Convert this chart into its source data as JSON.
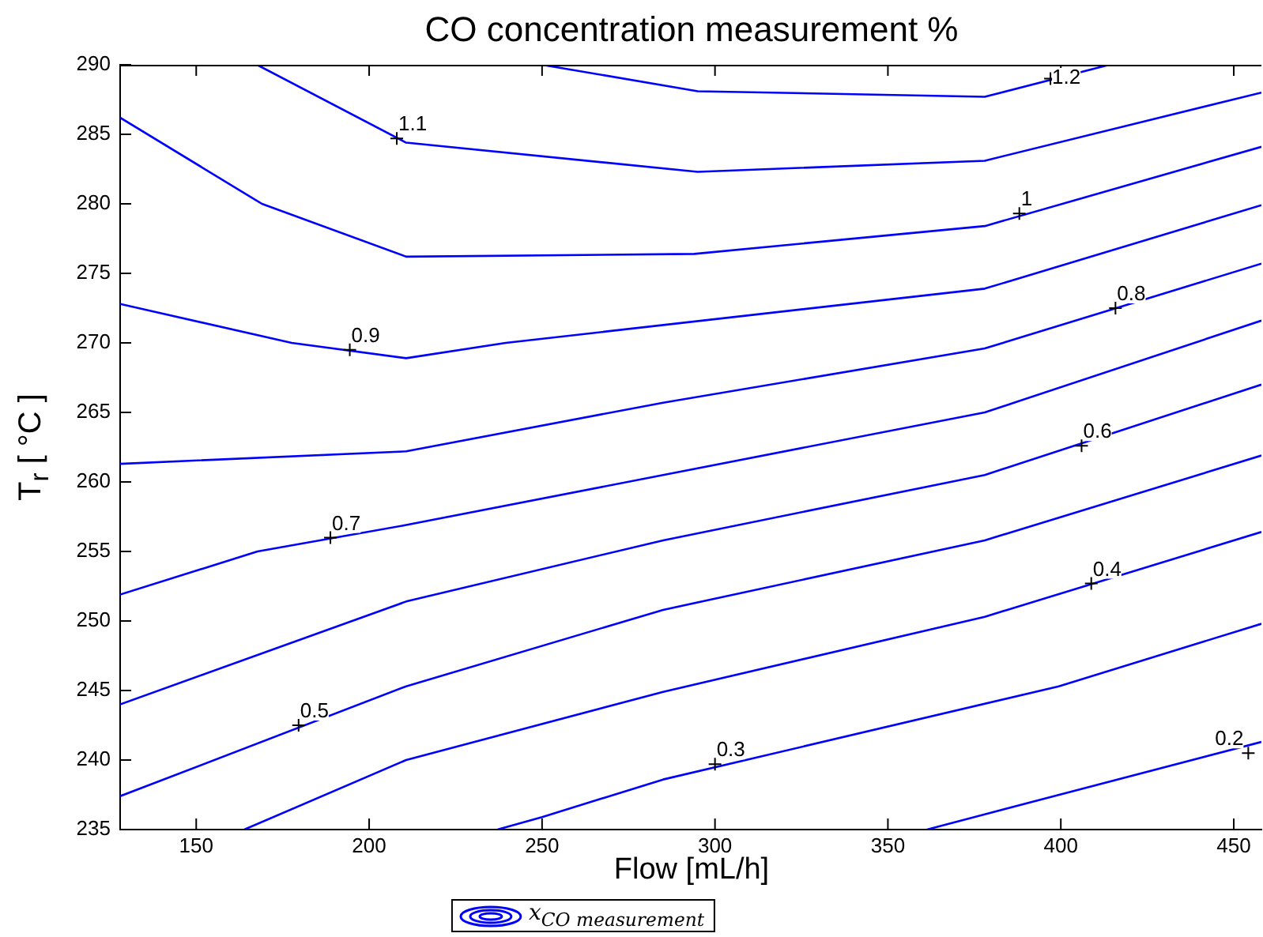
{
  "chart_data": {
    "type": "line",
    "title": "CO concentration measurement %",
    "xlabel": "Flow [mL/h]",
    "ylabel": "T$_{r}$ [ °C ]",
    "xlim": [
      128,
      458
    ],
    "xticks": [
      150,
      200,
      250,
      300,
      350,
      400,
      450
    ],
    "ylim": [
      235,
      290
    ],
    "yticks": [
      235,
      240,
      245,
      250,
      255,
      260,
      265,
      270,
      275,
      280,
      285,
      290
    ],
    "legend": "bottom",
    "series": [
      {
        "name": "x$_{CO measurement}$",
        "color": "#0000ff",
        "x": [
          250,
          295,
          378,
          414
        ],
        "values": [
          290,
          288.1,
          287.7,
          290
        ]
      },
      {
        "color": "#0000ff",
        "x": [
          167.6,
          210.7,
          295,
          378,
          458
        ],
        "values": [
          290,
          284.4,
          282.3,
          283.1,
          288
        ]
      },
      {
        "color": "#0000ff",
        "x": [
          128,
          169,
          210.7,
          294,
          378,
          458
        ],
        "values": [
          286.2,
          280,
          276.2,
          276.4,
          278.4,
          284.1
        ]
      },
      {
        "color": "#0000ff",
        "x": [
          128,
          177.6,
          210.7,
          239.5,
          378,
          458
        ],
        "values": [
          272.8,
          270,
          268.9,
          270,
          273.9,
          279.9
        ]
      },
      {
        "color": "#0000ff",
        "x": [
          128,
          210.7,
          285,
          378,
          458
        ],
        "values": [
          261.3,
          262.2,
          265.7,
          269.6,
          275.7
        ]
      },
      {
        "color": "#0000ff",
        "x": [
          128,
          167.7,
          210.7,
          285,
          378,
          458
        ],
        "values": [
          251.9,
          255,
          256.9,
          260.5,
          265,
          271.6
        ]
      },
      {
        "color": "#0000ff",
        "x": [
          128,
          210.7,
          285,
          378,
          458
        ],
        "values": [
          244,
          251.4,
          255.8,
          260.5,
          267
        ]
      },
      {
        "color": "#0000ff",
        "x": [
          128,
          210.7,
          285,
          378,
          458
        ],
        "values": [
          237.4,
          245.3,
          250.8,
          255.8,
          261.9
        ]
      },
      {
        "color": "#0000ff",
        "x": [
          163.9,
          210.7,
          285,
          378,
          458
        ],
        "values": [
          235,
          240,
          244.9,
          250.3,
          256.4
        ]
      },
      {
        "color": "#0000ff",
        "x": [
          237.1,
          250,
          285,
          399.4,
          458
        ],
        "values": [
          235,
          235.9,
          238.6,
          245.3,
          249.8
        ]
      },
      {
        "color": "#0000ff",
        "x": [
          361.3,
          378,
          458
        ],
        "values": [
          235,
          236.1,
          241.3
        ]
      }
    ],
    "annotations": [
      {
        "text": "1.2",
        "x": 397,
        "y": 289
      },
      {
        "text": "1.1",
        "x": 208,
        "y": 284.7
      },
      {
        "text": "1",
        "x": 388,
        "y": 279.3
      },
      {
        "text": "0.9",
        "x": 194.4,
        "y": 269.5
      },
      {
        "text": "0.8",
        "x": 415.8,
        "y": 272.5
      },
      {
        "text": "0.7",
        "x": 188.8,
        "y": 256
      },
      {
        "text": "0.6",
        "x": 406,
        "y": 262.6
      },
      {
        "text": "0.5",
        "x": 179.6,
        "y": 242.5
      },
      {
        "text": "0.4",
        "x": 408.8,
        "y": 252.7
      },
      {
        "text": "0.3",
        "x": 300,
        "y": 239.7
      },
      {
        "text": "0.2",
        "x": 454.2,
        "y": 240.5
      }
    ]
  }
}
